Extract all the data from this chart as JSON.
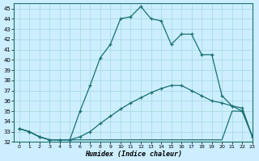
{
  "xlabel": "Humidex (Indice chaleur)",
  "xlim": [
    -0.5,
    23
  ],
  "ylim": [
    32,
    45.5
  ],
  "xticks": [
    0,
    1,
    2,
    3,
    4,
    5,
    6,
    7,
    8,
    9,
    10,
    11,
    12,
    13,
    14,
    15,
    16,
    17,
    18,
    19,
    20,
    21,
    22,
    23
  ],
  "yticks": [
    32,
    33,
    34,
    35,
    36,
    37,
    38,
    39,
    40,
    41,
    42,
    43,
    44,
    45
  ],
  "bg_color": "#cceeff",
  "line_color": "#1a7070",
  "grid_color": "#aadddd",
  "series1_x": [
    0,
    1,
    2,
    3,
    4,
    5,
    6,
    7,
    8,
    9,
    10,
    11,
    12,
    13,
    14,
    15,
    16,
    17,
    18,
    19,
    20,
    21,
    22,
    23
  ],
  "series1_y": [
    33.3,
    33.0,
    32.5,
    32.2,
    32.2,
    32.2,
    35.0,
    37.5,
    40.2,
    41.5,
    44.0,
    44.2,
    45.2,
    44.0,
    43.8,
    41.5,
    42.5,
    42.5,
    40.5,
    40.5,
    36.5,
    35.5,
    35.0,
    32.5
  ],
  "series2_x": [
    0,
    1,
    2,
    3,
    4,
    5,
    6,
    7,
    8,
    9,
    10,
    11,
    12,
    13,
    14,
    15,
    16,
    17,
    18,
    19,
    20,
    21,
    22,
    23
  ],
  "series2_y": [
    33.3,
    33.0,
    32.5,
    32.2,
    32.2,
    32.2,
    32.5,
    33.0,
    33.8,
    34.5,
    35.2,
    35.8,
    36.3,
    36.8,
    37.2,
    37.5,
    37.5,
    37.0,
    36.5,
    36.0,
    35.8,
    35.5,
    35.3,
    32.5
  ],
  "series3_x": [
    0,
    1,
    2,
    3,
    4,
    5,
    6,
    7,
    8,
    9,
    10,
    11,
    12,
    13,
    14,
    15,
    16,
    17,
    18,
    19,
    20,
    21,
    22,
    23
  ],
  "series3_y": [
    33.3,
    33.0,
    32.5,
    32.2,
    32.2,
    32.2,
    32.2,
    32.2,
    32.2,
    32.2,
    32.2,
    32.2,
    32.2,
    32.2,
    32.2,
    32.2,
    32.2,
    32.2,
    32.2,
    32.2,
    32.2,
    35.0,
    35.0,
    32.5
  ]
}
